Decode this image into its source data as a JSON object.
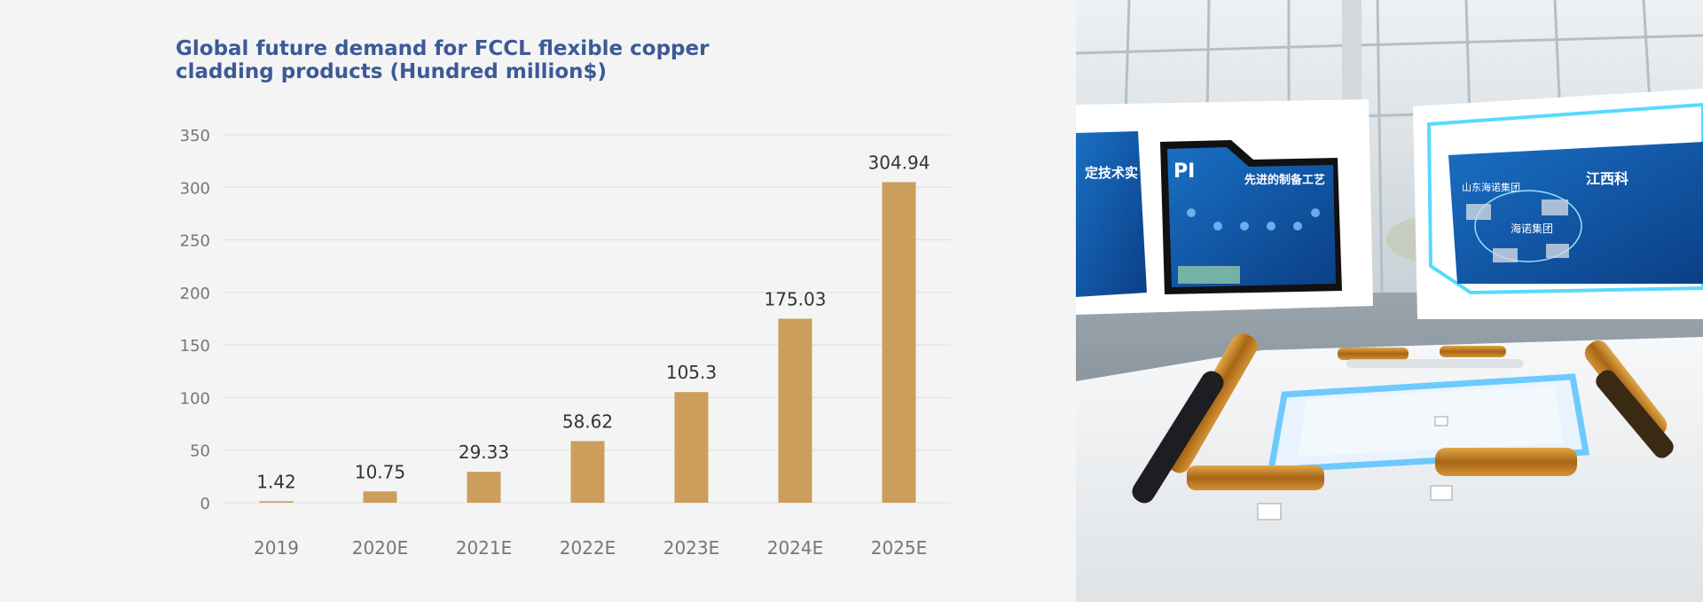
{
  "chart_data": {
    "type": "bar",
    "title": "Global future demand for FCCL flexible copper cladding products (Hundred million$)",
    "categories": [
      "2019",
      "2020E",
      "2021E",
      "2022E",
      "2023E",
      "2024E",
      "2025E"
    ],
    "values": [
      1.42,
      10.75,
      29.33,
      58.62,
      105.3,
      175.03,
      304.94
    ],
    "value_labels": [
      "1.42",
      "10.75",
      "29.33",
      "58.62",
      "105.3",
      "175.03",
      "304.94"
    ],
    "ylim": [
      0,
      350
    ],
    "yticks": [
      0,
      50,
      100,
      150,
      200,
      250,
      300,
      350
    ],
    "grid": true,
    "legend": "none",
    "bar_color": "#cc9e5b"
  },
  "photo": {
    "subject": "FCCL product exhibition hall",
    "panel_texts": [
      "定技术实",
      "PI",
      "先进的制备工艺",
      "山东海诺集团",
      "江西科",
      "海诺集团"
    ]
  }
}
